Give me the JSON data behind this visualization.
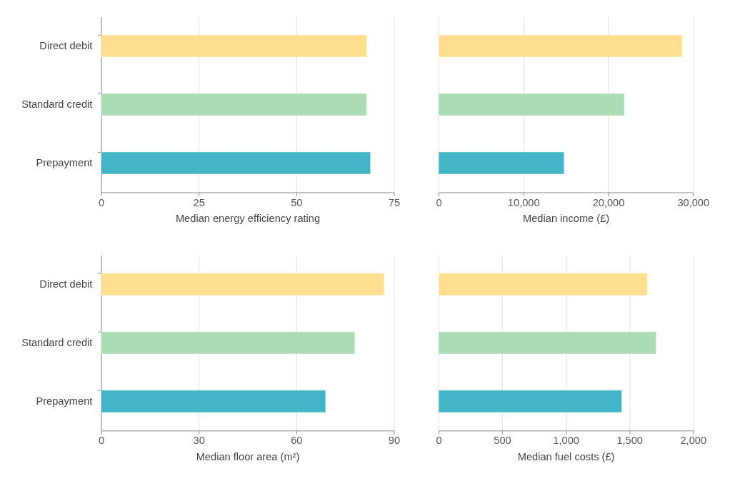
{
  "chart_data": [
    {
      "type": "bar",
      "orientation": "horizontal",
      "categories": [
        "Direct debit",
        "Standard credit",
        "Prepayment"
      ],
      "values": [
        68,
        68,
        69
      ],
      "colors": [
        "#ffde8f",
        "#aadcb5",
        "#42b6c6"
      ],
      "xlabel": "Median energy efficiency rating",
      "xlim": [
        0,
        75
      ],
      "xticks": [
        0,
        25,
        50,
        75
      ],
      "grid": "x"
    },
    {
      "type": "bar",
      "orientation": "horizontal",
      "categories": [
        null,
        null,
        null
      ],
      "values": [
        28700,
        21900,
        14800
      ],
      "colors": [
        "#ffde8f",
        "#aadcb5",
        "#42b6c6"
      ],
      "xlabel": "Median income (£)",
      "xlim": [
        0,
        30000
      ],
      "xticks": [
        0,
        {
          "value": 10000,
          "label": "10,000"
        },
        {
          "value": 20000,
          "label": "20,000"
        },
        {
          "value": 30000,
          "label": "30,000"
        }
      ],
      "grid": "x",
      "tick_labels": "x"
    },
    {
      "type": "bar",
      "orientation": "horizontal",
      "categories": [
        "Direct debit",
        "Standard credit",
        "Prepayment"
      ],
      "values": [
        87,
        78,
        69
      ],
      "colors": [
        "#ffde8f",
        "#aadcb5",
        "#42b6c6"
      ],
      "xlabel": "Median floor area (m²)",
      "xlim": [
        0,
        90
      ],
      "xticks": [
        0,
        30,
        60,
        90
      ],
      "grid": "x"
    },
    {
      "type": "bar",
      "orientation": "horizontal",
      "categories": [
        null,
        null,
        null
      ],
      "values": [
        1640,
        1710,
        1440
      ],
      "colors": [
        "#ffde8f",
        "#aadcb5",
        "#42b6c6"
      ],
      "xlabel": "Median fuel costs (£)",
      "xlim": [
        0,
        2000
      ],
      "xticks": [
        0,
        500,
        {
          "value": 1000,
          "label": "1,000"
        },
        {
          "value": 1500,
          "label": "1,500"
        },
        {
          "value": 2000,
          "label": "2,000"
        }
      ],
      "grid": "x",
      "tick_labels": "x"
    }
  ]
}
